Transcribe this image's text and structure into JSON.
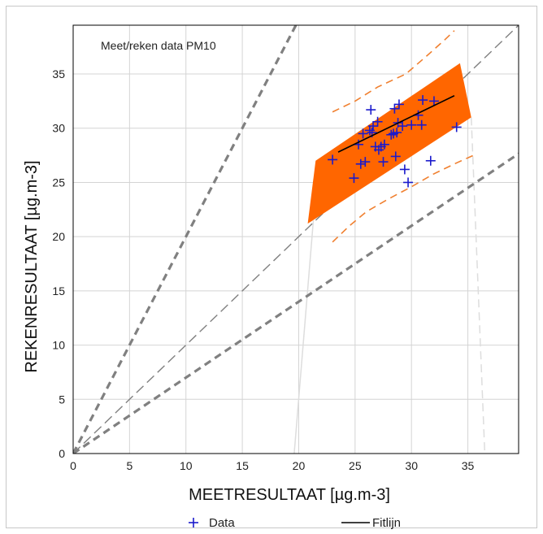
{
  "chart_data": {
    "type": "scatter",
    "annotation": "Meet/reken data PM10",
    "xlabel": "MEETRESULTAAT  [µg.m-3]",
    "ylabel": "REKENRESULTAAT   [µg.m-3]",
    "xlim": [
      0,
      39.5
    ],
    "ylim": [
      0,
      39.5
    ],
    "x_ticks": [
      0,
      5,
      10,
      15,
      20,
      25,
      30,
      35
    ],
    "y_ticks": [
      0,
      5,
      10,
      15,
      20,
      25,
      30,
      35
    ],
    "grid": true,
    "legend_position": "bottom",
    "colors": {
      "data": "#1a1acc",
      "fit": "#000000",
      "band": "#ff6600",
      "band_dash": "#f08030",
      "guide": "#808080"
    },
    "series": [
      {
        "name": "Data",
        "marker": "plus",
        "points": [
          [
            23.0,
            27.1
          ],
          [
            24.9,
            25.4
          ],
          [
            25.3,
            28.5
          ],
          [
            25.5,
            26.7
          ],
          [
            25.7,
            29.5
          ],
          [
            25.9,
            26.9
          ],
          [
            26.3,
            29.8
          ],
          [
            26.4,
            31.7
          ],
          [
            26.5,
            29.6
          ],
          [
            26.6,
            30.2
          ],
          [
            26.8,
            28.3
          ],
          [
            27.0,
            30.6
          ],
          [
            27.1,
            28.0
          ],
          [
            27.3,
            28.3
          ],
          [
            27.5,
            26.9
          ],
          [
            27.6,
            28.5
          ],
          [
            28.2,
            29.4
          ],
          [
            28.4,
            29.5
          ],
          [
            28.5,
            31.8
          ],
          [
            28.6,
            27.4
          ],
          [
            28.7,
            29.6
          ],
          [
            28.8,
            30.5
          ],
          [
            28.9,
            32.2
          ],
          [
            29.2,
            30.2
          ],
          [
            29.4,
            26.2
          ],
          [
            29.7,
            25.0
          ],
          [
            30.0,
            30.3
          ],
          [
            30.6,
            31.2
          ],
          [
            30.9,
            30.3
          ],
          [
            31.0,
            32.6
          ],
          [
            31.7,
            27.0
          ],
          [
            32.0,
            32.5
          ],
          [
            34.0,
            30.1
          ]
        ]
      },
      {
        "name": "Fitlijn",
        "line": [
          [
            23.5,
            27.8
          ],
          [
            33.8,
            33.0
          ]
        ]
      }
    ],
    "confidence_band": [
      [
        21.5,
        27.0
      ],
      [
        34.3,
        36.0
      ],
      [
        35.3,
        31.0
      ],
      [
        20.8,
        21.2
      ]
    ],
    "prediction_upper": [
      [
        23.0,
        31.5
      ],
      [
        25.0,
        32.5
      ],
      [
        27.0,
        33.8
      ],
      [
        29.5,
        35.0
      ],
      [
        31.5,
        36.8
      ],
      [
        33.0,
        38.2
      ],
      [
        33.8,
        39.0
      ]
    ],
    "prediction_lower": [
      [
        23.0,
        19.5
      ],
      [
        24.5,
        21.0
      ],
      [
        26.0,
        22.3
      ],
      [
        28.0,
        23.5
      ],
      [
        30.0,
        24.6
      ],
      [
        32.0,
        25.8
      ],
      [
        34.0,
        26.8
      ],
      [
        35.5,
        27.5
      ]
    ],
    "reference_lines": [
      {
        "style": "thick-dash",
        "slope": 2.0
      },
      {
        "style": "thin-dash",
        "slope": 1.0
      },
      {
        "style": "thick-dash",
        "slope": 0.7
      }
    ]
  }
}
